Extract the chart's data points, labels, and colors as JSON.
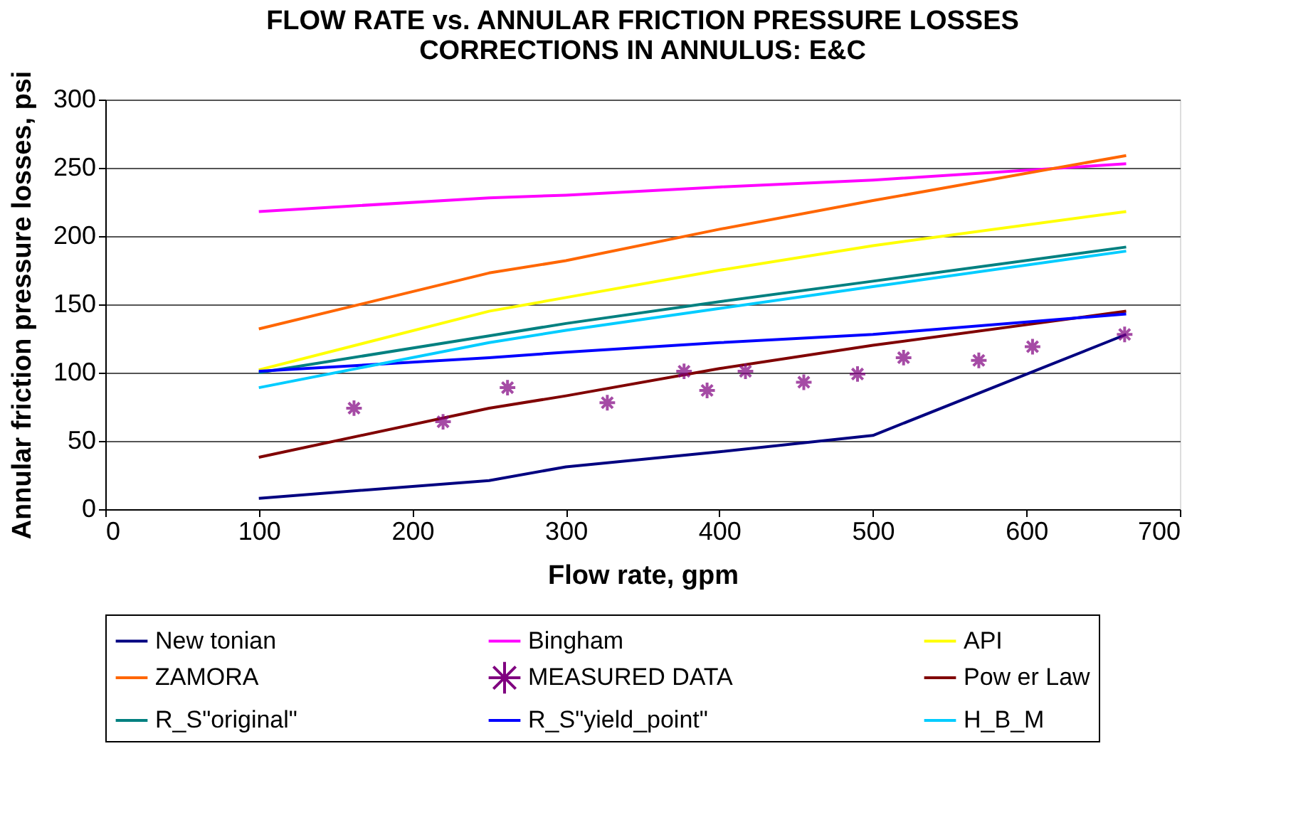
{
  "chart_data": {
    "type": "line",
    "title": [
      "FLOW RATE vs. ANNULAR FRICTION PRESSURE LOSSES",
      "CORRECTIONS IN ANNULUS: E&C"
    ],
    "xlabel": "Flow rate, gpm",
    "ylabel": "Annular friction pressure losses, psi",
    "xlim": [
      0,
      700
    ],
    "xticks": [
      0,
      100,
      200,
      300,
      400,
      500,
      600,
      700
    ],
    "ylim": [
      0,
      300
    ],
    "yticks": [
      0,
      50,
      100,
      150,
      200,
      250,
      300
    ],
    "grid": "y",
    "legend": "bottom",
    "marker": "none",
    "line_style": "solid",
    "series": [
      {
        "name": "New tonian",
        "color": "#000080",
        "x": [
          100,
          250,
          300,
          400,
          500,
          665
        ],
        "values": [
          8,
          21,
          31,
          42,
          54,
          128
        ]
      },
      {
        "name": "Bingham",
        "color": "#ff00ff",
        "x": [
          100,
          250,
          300,
          400,
          500,
          665
        ],
        "values": [
          218,
          228,
          230,
          236,
          241,
          253
        ]
      },
      {
        "name": "API",
        "color": "#ffff00",
        "x": [
          100,
          250,
          300,
          400,
          500,
          665
        ],
        "values": [
          102,
          145,
          155,
          175,
          193,
          218
        ]
      },
      {
        "name": "ZAMORA",
        "color": "#ff6600",
        "x": [
          100,
          250,
          300,
          400,
          500,
          665
        ],
        "values": [
          132,
          173,
          182,
          205,
          226,
          259
        ]
      },
      {
        "name": "MEASURED DATA",
        "color": "#800080",
        "type": "scatter",
        "marker": "cross",
        "x": [
          162,
          220,
          262,
          327,
          377,
          392,
          417,
          455,
          490,
          520,
          569,
          604,
          664
        ],
        "values": [
          74,
          64,
          89,
          78,
          101,
          87,
          101,
          93,
          99,
          111,
          109,
          119,
          128
        ]
      },
      {
        "name": "Pow er Law",
        "color": "#800000",
        "x": [
          100,
          250,
          300,
          400,
          500,
          665
        ],
        "values": [
          38,
          74,
          83,
          103,
          120,
          145
        ]
      },
      {
        "name": "R_S\"original\"",
        "color": "#008080",
        "x": [
          100,
          250,
          300,
          400,
          500,
          665
        ],
        "values": [
          100,
          127,
          136,
          152,
          167,
          192
        ]
      },
      {
        "name": "R_S\"yield_point\"",
        "color": "#0000ff",
        "x": [
          100,
          250,
          300,
          400,
          500,
          665
        ],
        "values": [
          101,
          111,
          115,
          122,
          128,
          143
        ]
      },
      {
        "name": "H_B_M",
        "color": "#00ccff",
        "x": [
          100,
          250,
          300,
          400,
          500,
          665
        ],
        "values": [
          89,
          122,
          131,
          147,
          163,
          189
        ]
      }
    ]
  }
}
